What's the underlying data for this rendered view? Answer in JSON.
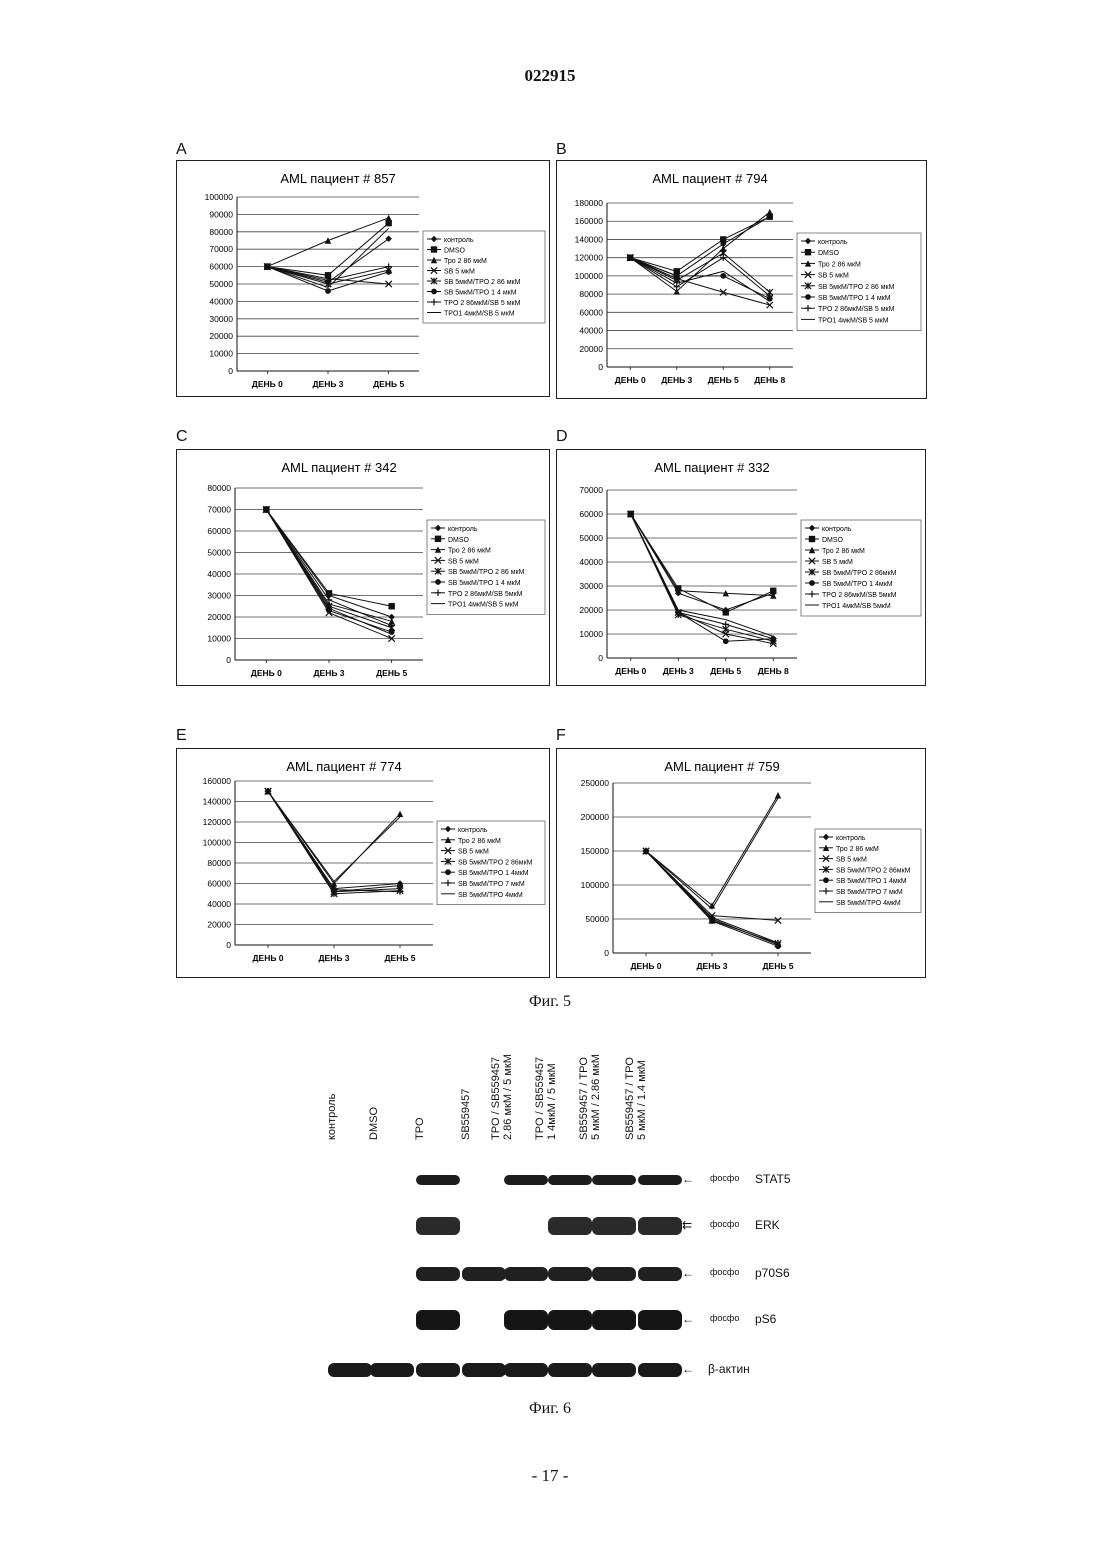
{
  "document": {
    "number": "022915",
    "page_footer": "- 17 -",
    "fig5_caption": "Фиг. 5",
    "fig6_caption": "Фиг. 6"
  },
  "chart_data": [
    {
      "panel": "A",
      "type": "line",
      "title": "AML пациент  # 857",
      "categories": [
        "ДЕНЬ  0",
        "ДЕНЬ  3",
        "ДЕНЬ  5"
      ],
      "ylim": [
        0,
        100000
      ],
      "yticks": [
        0,
        10000,
        20000,
        30000,
        40000,
        50000,
        60000,
        70000,
        80000,
        90000,
        100000
      ],
      "grid": true,
      "legend_position": "right",
      "series": [
        {
          "name": "контроль",
          "marker": "diamond",
          "values": [
            60000,
            51000,
            76000
          ]
        },
        {
          "name": "DMSO",
          "marker": "square",
          "values": [
            60000,
            55000,
            85000
          ]
        },
        {
          "name": "Тро 2 86 мкМ",
          "marker": "triangle",
          "values": [
            60000,
            75000,
            88000
          ]
        },
        {
          "name": "SB 5 мкМ",
          "marker": "x",
          "values": [
            60000,
            53000,
            50000
          ]
        },
        {
          "name": "SB 5мкМ/TPO 2 86 мкМ",
          "marker": "star",
          "values": [
            60000,
            50000,
            58000
          ]
        },
        {
          "name": "SB 5мкМ/TPO 1 4 мкМ",
          "marker": "circle",
          "values": [
            60000,
            46000,
            57000
          ]
        },
        {
          "name": "TPO 2 86мкМ/SB 5 мкМ",
          "marker": "plus",
          "values": [
            60000,
            52000,
            60000
          ]
        },
        {
          "name": "TPO1 4мкМ/SB 5 мкМ",
          "marker": "none",
          "values": [
            60000,
            48000,
            82000
          ]
        }
      ]
    },
    {
      "panel": "B",
      "type": "line",
      "title": "AML пациент  # 794",
      "categories": [
        "ДЕНЬ  0",
        "ДЕНЬ  3",
        "ДЕНЬ  5",
        "ДЕНЬ  8"
      ],
      "ylim": [
        0,
        180000
      ],
      "yticks": [
        0,
        20000,
        40000,
        60000,
        80000,
        100000,
        120000,
        140000,
        160000,
        180000
      ],
      "grid": true,
      "legend_position": "right",
      "series": [
        {
          "name": "контроль",
          "marker": "diamond",
          "values": [
            120000,
            100000,
            135000,
            165000
          ]
        },
        {
          "name": "DMSO",
          "marker": "square",
          "values": [
            120000,
            105000,
            140000,
            165000
          ]
        },
        {
          "name": "Тро 2 86  мкМ",
          "marker": "triangle",
          "values": [
            120000,
            83000,
            130000,
            170000
          ]
        },
        {
          "name": "SB 5 мкМ",
          "marker": "x",
          "values": [
            120000,
            97000,
            82000,
            68000
          ]
        },
        {
          "name": "SB 5мкМ/TPO 2 86  мкМ",
          "marker": "star",
          "values": [
            120000,
            95000,
            125000,
            82000
          ]
        },
        {
          "name": "SB 5мкМ/TPO 1 4 мкМ",
          "marker": "circle",
          "values": [
            120000,
            100000,
            100000,
            75000
          ]
        },
        {
          "name": "TPO 2 86мкМ/SB 5 мкМ",
          "marker": "plus",
          "values": [
            120000,
            88000,
            120000,
            78000
          ]
        },
        {
          "name": "TPO1 4мкМ/SB 5 мкМ",
          "marker": "none",
          "values": [
            120000,
            92000,
            105000,
            72000
          ]
        }
      ]
    },
    {
      "panel": "C",
      "type": "line",
      "title": "AML пациент  # 342",
      "categories": [
        "ДЕНЬ  0",
        "ДЕНЬ  3",
        "ДЕНЬ  5"
      ],
      "ylim": [
        0,
        80000
      ],
      "yticks": [
        0,
        10000,
        20000,
        30000,
        40000,
        50000,
        60000,
        70000,
        80000
      ],
      "grid": true,
      "legend_position": "right",
      "series": [
        {
          "name": "контроль",
          "marker": "diamond",
          "values": [
            70000,
            30000,
            20000
          ]
        },
        {
          "name": "DMSO",
          "marker": "square",
          "values": [
            70000,
            31000,
            25000
          ]
        },
        {
          "name": "Тро 2 86 мкМ",
          "marker": "triangle",
          "values": [
            70000,
            26000,
            18000
          ]
        },
        {
          "name": "SB 5 мкМ",
          "marker": "x",
          "values": [
            70000,
            22000,
            10000
          ]
        },
        {
          "name": "SB 5мкМ/TPO 2 86 мкМ",
          "marker": "star",
          "values": [
            70000,
            25000,
            15000
          ]
        },
        {
          "name": "SB 5мкМ/TPO 1 4 мкМ",
          "marker": "circle",
          "values": [
            70000,
            23000,
            13000
          ]
        },
        {
          "name": "TPO 2 86мкМ/SB 5мкМ",
          "marker": "plus",
          "values": [
            70000,
            28000,
            16000
          ]
        },
        {
          "name": "TPO1 4мкМ/SB 5 мкМ",
          "marker": "none",
          "values": [
            70000,
            24000,
            12000
          ]
        }
      ]
    },
    {
      "panel": "D",
      "type": "line",
      "title": "AML пациент  # 332",
      "categories": [
        "ДЕНЬ 0",
        "ДЕНЬ 3",
        "ДЕНЬ 5",
        "ДЕНЬ 8"
      ],
      "ylim": [
        0,
        70000
      ],
      "yticks": [
        0,
        10000,
        20000,
        30000,
        40000,
        50000,
        60000,
        70000
      ],
      "grid": true,
      "legend_position": "right",
      "series": [
        {
          "name": "контроль",
          "marker": "diamond",
          "values": [
            60000,
            27000,
            20000,
            27000
          ]
        },
        {
          "name": "DMSO",
          "marker": "square",
          "values": [
            60000,
            29000,
            19000,
            28000
          ]
        },
        {
          "name": "Тро 2 86 мкМ",
          "marker": "triangle",
          "values": [
            60000,
            28000,
            27000,
            26000
          ]
        },
        {
          "name": "SB 5 мкМ",
          "marker": "x",
          "values": [
            60000,
            19000,
            10000,
            6000
          ]
        },
        {
          "name": "SB 5мкМ/TPO 2 86мкМ",
          "marker": "star",
          "values": [
            60000,
            18000,
            12000,
            7000
          ]
        },
        {
          "name": "SB 5мкМ/TPO 1 4мкМ",
          "marker": "circle",
          "values": [
            60000,
            19000,
            7000,
            8000
          ]
        },
        {
          "name": "TPO 2 86мкМ/SB 5мкМ",
          "marker": "plus",
          "values": [
            60000,
            19000,
            14000,
            8000
          ]
        },
        {
          "name": "TPO1 4мкМ/SB 5мкМ",
          "marker": "none",
          "values": [
            60000,
            20000,
            16000,
            9000
          ]
        }
      ]
    },
    {
      "panel": "E",
      "type": "line",
      "title": "AML пациент  # 774",
      "categories": [
        "ДЕНЬ  0",
        "ДЕНЬ  3",
        "ДЕНЬ  5"
      ],
      "ylim": [
        0,
        160000
      ],
      "yticks": [
        0,
        20000,
        40000,
        60000,
        80000,
        100000,
        120000,
        140000,
        160000
      ],
      "grid": true,
      "legend_position": "right",
      "series": [
        {
          "name": "контроль",
          "marker": "diamond",
          "values": [
            150000,
            55000,
            60000
          ]
        },
        {
          "name": "Тро 2 86 мкМ",
          "marker": "triangle",
          "values": [
            150000,
            60000,
            128000
          ]
        },
        {
          "name": "SB 5 мкМ",
          "marker": "x",
          "values": [
            150000,
            52000,
            55000
          ]
        },
        {
          "name": "SB 5мкМ/TPO 2 86мкМ",
          "marker": "star",
          "values": [
            150000,
            50000,
            53000
          ]
        },
        {
          "name": "SB 5мкМ/TPO 1 4мкМ",
          "marker": "circle",
          "values": [
            150000,
            52000,
            58000
          ]
        },
        {
          "name": "SB 5мкМ/TPO  7 мкМ",
          "marker": "plus",
          "values": [
            150000,
            54000,
            52000
          ]
        },
        {
          "name": "SB 5мкМ/TPO  4мкМ",
          "marker": "none",
          "values": [
            150000,
            62000,
            125000
          ]
        }
      ]
    },
    {
      "panel": "F",
      "type": "line",
      "title": "AML пациент  # 759",
      "categories": [
        "ДЕНЬ  0",
        "ДЕНЬ  3",
        "ДЕНЬ  5"
      ],
      "ylim": [
        0,
        250000
      ],
      "yticks": [
        0,
        50000,
        100000,
        150000,
        200000,
        250000
      ],
      "grid": true,
      "legend_position": "right",
      "series": [
        {
          "name": "контроль",
          "marker": "diamond",
          "values": [
            150000,
            50000,
            12000
          ]
        },
        {
          "name": "Тро 2 86 мкМ",
          "marker": "triangle",
          "values": [
            150000,
            70000,
            232000
          ]
        },
        {
          "name": "SB 5 мкМ",
          "marker": "x",
          "values": [
            150000,
            55000,
            48000
          ]
        },
        {
          "name": "SB 5мкМ/TPO 2 86мкМ",
          "marker": "star",
          "values": [
            150000,
            48000,
            14000
          ]
        },
        {
          "name": "SB 5мкМ/TPO 1 4мкМ",
          "marker": "circle",
          "values": [
            150000,
            47000,
            10000
          ]
        },
        {
          "name": "SB 5мкМ/TPO 7 мкМ",
          "marker": "plus",
          "values": [
            150000,
            52000,
            15000
          ]
        },
        {
          "name": "SB 5мкМ/TPO  4мкМ",
          "marker": "none",
          "values": [
            150000,
            65000,
            228000
          ]
        }
      ]
    }
  ],
  "western_blot": {
    "lanes": [
      "контроль",
      "DMSO",
      "TPO",
      "SB559457",
      "TPO / SB559457\n2.86 мкМ / 5 мкМ",
      "TPO / SB559457\n1 4мкМ / 5 мкМ",
      "SB559457 / TPO\n5 мкМ / 2.86 мкМ",
      "SB559457 / TPO\n5 мкМ / 1.4 мкМ"
    ],
    "rows": [
      {
        "prefix": "фосфо",
        "label": "STAT5"
      },
      {
        "prefix": "фосфо",
        "label": "ERK"
      },
      {
        "prefix": "фосфо",
        "label": "p70S6"
      },
      {
        "prefix": "фосфо",
        "label": "pS6"
      },
      {
        "prefix": "",
        "label": "β-актин"
      }
    ]
  }
}
